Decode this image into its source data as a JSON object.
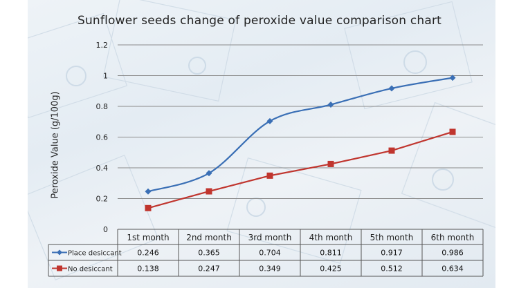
{
  "chart_data": {
    "type": "line",
    "title": "Sunflower seeds change of peroxide value comparison chart",
    "xlabel": "",
    "ylabel": "Peroxide Value (g/100g)",
    "ylim": [
      0,
      1.2
    ],
    "yticks": [
      "0",
      "0.2",
      "0.4",
      "0.6",
      "0.8",
      "1",
      "1.2"
    ],
    "grid": true,
    "legend": "data-table",
    "categories": [
      "1st month",
      "2nd month",
      "3rd month",
      "4th month",
      "5th month",
      "6th month"
    ],
    "series": [
      {
        "name": "Place desiccant",
        "color": "#3a6fb5",
        "marker": "diamond",
        "smooth": true,
        "values": [
          0.246,
          0.365,
          0.704,
          0.811,
          0.917,
          0.986
        ],
        "labels": [
          "0.246",
          "0.365",
          "0.704",
          "0.811",
          "0.917",
          "0.986"
        ]
      },
      {
        "name": "No desiccant",
        "color": "#c0352e",
        "marker": "square",
        "smooth": false,
        "values": [
          0.138,
          0.247,
          0.349,
          0.425,
          0.512,
          0.634
        ],
        "labels": [
          "0.138",
          "0.247",
          "0.349",
          "0.425",
          "0.512",
          "0.634"
        ]
      }
    ]
  }
}
